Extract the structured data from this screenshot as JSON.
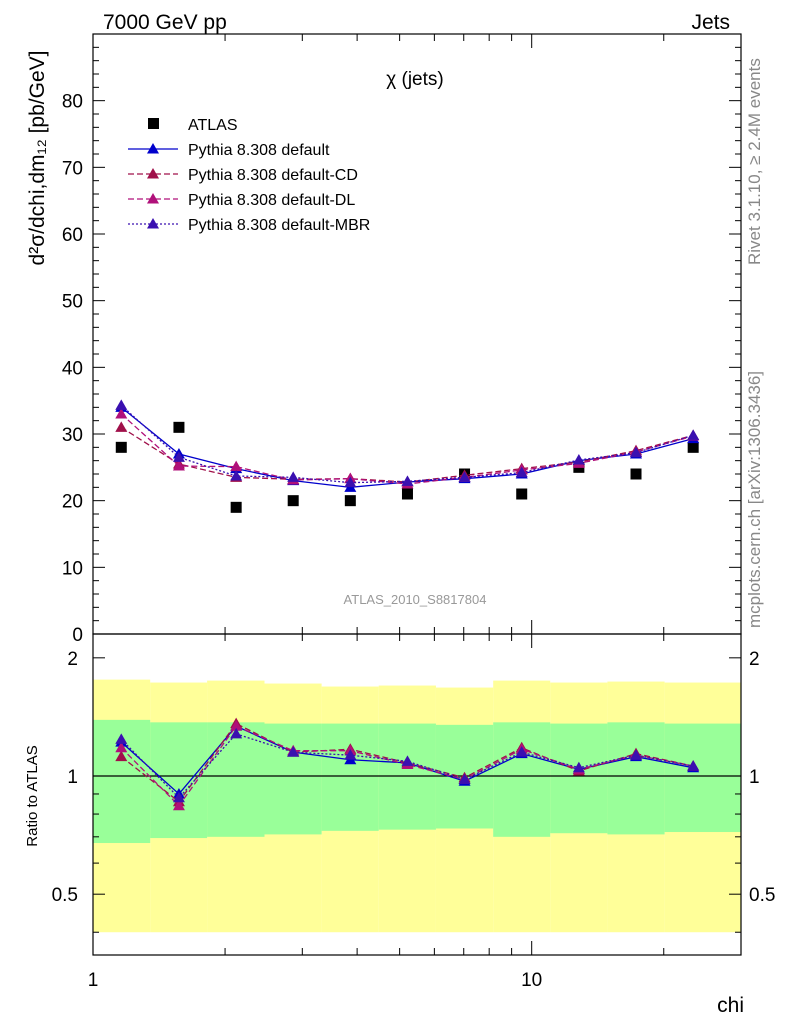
{
  "header": {
    "left": "7000 GeV pp",
    "right": "Jets"
  },
  "side_labels": {
    "rivet": "Rivet 3.1.10, ≥ 2.4M events",
    "mcplots": "mcplots.cern.ch [arXiv:1306.3436]"
  },
  "chart_data": [
    {
      "type": "scatter",
      "panel": "main",
      "title": "χ (jets)",
      "ylabel": "d²σ/dchi,dm₁₂ [pb/GeV]",
      "analysis_label": "ATLAS_2010_S8817804",
      "xscale": "log",
      "xlim": [
        1,
        30
      ],
      "ylim": [
        0,
        90
      ],
      "yticks": [
        0,
        10,
        20,
        30,
        40,
        50,
        60,
        70,
        80
      ],
      "grid": false,
      "legend_position": "top-left",
      "x": [
        1.16,
        1.57,
        2.12,
        2.86,
        3.86,
        5.21,
        7.03,
        9.49,
        12.81,
        17.29,
        23.34
      ],
      "series": [
        {
          "name": "ATLAS",
          "style": "data",
          "color": "#000000",
          "values": [
            28,
            31,
            19,
            20,
            20,
            21,
            24,
            21,
            25,
            24,
            28
          ]
        },
        {
          "name": "Pythia 8.308 default",
          "style": "solid",
          "color": "#0000cc",
          "values": [
            34,
            27,
            24.8,
            23,
            22,
            22.8,
            23.3,
            24,
            26,
            27,
            29.3
          ]
        },
        {
          "name": "Pythia 8.308 default-CD",
          "style": "dashed",
          "color": "#a0104a",
          "values": [
            31,
            25.5,
            23.5,
            23.2,
            23.3,
            22.8,
            23.8,
            24.8,
            25.8,
            27.5,
            29.8
          ]
        },
        {
          "name": "Pythia 8.308 default-DL",
          "style": "dashed",
          "color": "#b0107a",
          "values": [
            33,
            25.2,
            25.1,
            23.1,
            23.3,
            22.5,
            23.5,
            24.6,
            25.6,
            27.3,
            29.7
          ]
        },
        {
          "name": "Pythia 8.308 default-MBR",
          "style": "dotted",
          "color": "#3a10b0",
          "values": [
            34.3,
            26.5,
            23.7,
            23.5,
            22.7,
            22.9,
            23.5,
            24.2,
            26.1,
            27.2,
            29.8
          ]
        }
      ]
    },
    {
      "type": "line",
      "panel": "ratio",
      "ylabel": "Ratio to ATLAS",
      "xlabel": "chi",
      "xscale": "log",
      "yscale": "log",
      "xlim": [
        1,
        30
      ],
      "ylim": [
        0.35,
        2.3
      ],
      "yticks": [
        0.5,
        1,
        2
      ],
      "xticks": [
        1,
        10
      ],
      "bin_edges": [
        1,
        1.35,
        1.82,
        2.46,
        3.32,
        4.48,
        6.05,
        8.17,
        11.02,
        14.88,
        20.09,
        30
      ],
      "yellow_band": {
        "color": "#ffff99",
        "low": [
          0.4,
          0.4,
          0.4,
          0.4,
          0.4,
          0.4,
          0.4,
          0.4,
          0.4,
          0.4,
          0.4
        ],
        "high": [
          1.76,
          1.73,
          1.75,
          1.72,
          1.69,
          1.7,
          1.68,
          1.75,
          1.73,
          1.74,
          1.73
        ]
      },
      "green_band": {
        "color": "#99ff99",
        "low": [
          0.675,
          0.695,
          0.7,
          0.71,
          0.725,
          0.73,
          0.735,
          0.7,
          0.715,
          0.71,
          0.72
        ],
        "high": [
          1.39,
          1.37,
          1.37,
          1.36,
          1.36,
          1.36,
          1.35,
          1.37,
          1.36,
          1.37,
          1.36
        ]
      },
      "reference_line": 1,
      "x": [
        1.16,
        1.57,
        2.12,
        2.86,
        3.86,
        5.21,
        7.03,
        9.49,
        12.81,
        17.29,
        23.34
      ],
      "series": [
        {
          "name": "Pythia 8.308 default",
          "style": "solid",
          "color": "#0000cc",
          "values": [
            1.22,
            0.9,
            1.34,
            1.15,
            1.1,
            1.08,
            0.97,
            1.14,
            1.04,
            1.12,
            1.05
          ]
        },
        {
          "name": "Pythia 8.308 default-CD",
          "style": "dashed",
          "color": "#a0104a",
          "values": [
            1.12,
            0.86,
            1.36,
            1.15,
            1.17,
            1.08,
            0.99,
            1.18,
            1.03,
            1.14,
            1.06
          ]
        },
        {
          "name": "Pythia 8.308 default-DL",
          "style": "dashed",
          "color": "#b0107a",
          "values": [
            1.18,
            0.84,
            1.34,
            1.16,
            1.16,
            1.07,
            0.98,
            1.17,
            1.04,
            1.13,
            1.06
          ]
        },
        {
          "name": "Pythia 8.308 default-MBR",
          "style": "dotted",
          "color": "#3a10b0",
          "values": [
            1.24,
            0.88,
            1.28,
            1.15,
            1.13,
            1.09,
            0.98,
            1.15,
            1.05,
            1.13,
            1.06
          ]
        }
      ]
    }
  ]
}
